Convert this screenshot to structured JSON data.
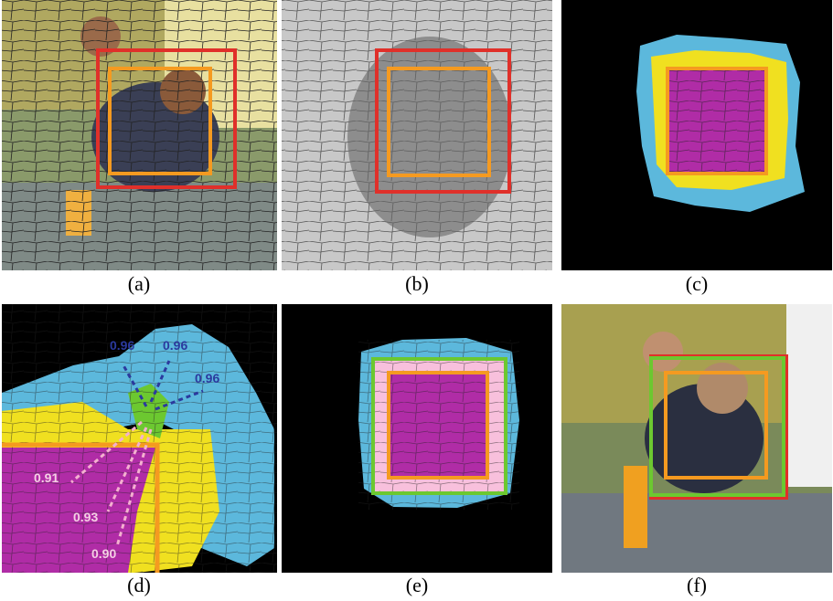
{
  "panels": [
    {
      "label": "(a)"
    },
    {
      "label": "(b)"
    },
    {
      "label": "(c)"
    },
    {
      "label": "(d)"
    },
    {
      "label": "(e)"
    },
    {
      "label": "(f)"
    }
  ],
  "annotations": [
    "0.96",
    "0.96",
    "0.96",
    "0.91",
    "0.93",
    "0.90"
  ]
}
